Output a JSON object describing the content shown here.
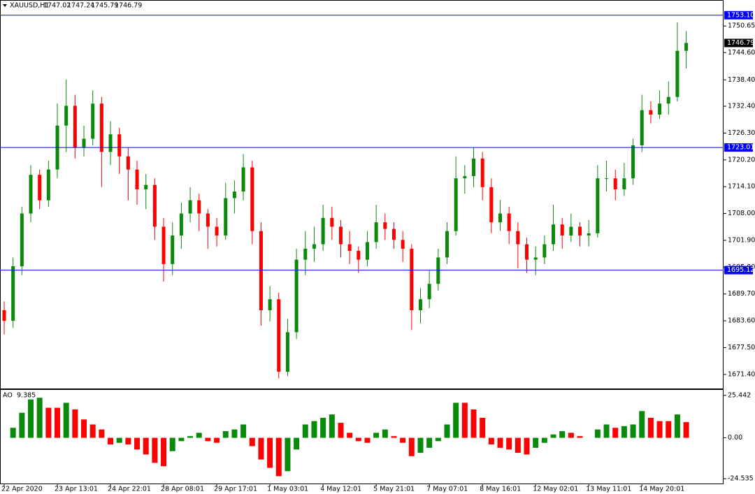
{
  "chart_data": [
    {
      "type": "candlestick",
      "title": "XAUUSD,H1",
      "header_values": [
        1747.02,
        1747.24,
        1745.79,
        1746.79
      ],
      "up_color": "#0a8a0a",
      "down_color": "#ff0000",
      "line_color": "#0000ff",
      "categories": [
        "22 Apr 2020",
        null,
        null,
        null,
        null,
        null,
        "23 Apr 13:01",
        null,
        null,
        null,
        null,
        null,
        "24 Apr 22:01",
        null,
        null,
        null,
        null,
        null,
        "28 Apr 08:01",
        null,
        null,
        null,
        null,
        null,
        "29 Apr 17:01",
        null,
        null,
        null,
        null,
        null,
        "1 May 03:01",
        null,
        null,
        null,
        null,
        null,
        "4 May 12:01",
        null,
        null,
        null,
        null,
        null,
        "5 May 21:01",
        null,
        null,
        null,
        null,
        null,
        "7 May 07:01",
        null,
        null,
        null,
        null,
        null,
        "8 May 16:01",
        null,
        null,
        null,
        null,
        null,
        "12 May 02:01",
        null,
        null,
        null,
        null,
        null,
        "13 May 11:01",
        null,
        null,
        null,
        null,
        null,
        "14 May 20:01",
        null,
        null,
        null,
        null,
        null
      ],
      "ohlc": [
        [
          1686,
          1688,
          1680.5,
          1683.6
        ],
        [
          1683.6,
          1698,
          1682,
          1696
        ],
        [
          1696,
          1709.5,
          1694,
          1708
        ],
        [
          1708,
          1719,
          1706,
          1716.8
        ],
        [
          1716.8,
          1718,
          1709,
          1711
        ],
        [
          1711,
          1720,
          1709.5,
          1718
        ],
        [
          1718,
          1733,
          1716,
          1728
        ],
        [
          1728,
          1738.5,
          1722,
          1732.5
        ],
        [
          1732.5,
          1735,
          1720.5,
          1723
        ],
        [
          1723,
          1728,
          1721,
          1725
        ],
        [
          1725,
          1736,
          1723.5,
          1733
        ],
        [
          1733,
          1734.5,
          1714,
          1722
        ],
        [
          1722,
          1729,
          1719,
          1726
        ],
        [
          1726,
          1727.5,
          1717,
          1721
        ],
        [
          1721,
          1723,
          1711,
          1718
        ],
        [
          1718,
          1720,
          1710,
          1713.5
        ],
        [
          1713.5,
          1717,
          1709,
          1714.5
        ],
        [
          1714.5,
          1716,
          1702,
          1705
        ],
        [
          1705,
          1707,
          1692.5,
          1696.5
        ],
        [
          1696.5,
          1706,
          1694,
          1703
        ],
        [
          1703,
          1710.5,
          1700,
          1708
        ],
        [
          1708,
          1714,
          1706,
          1711
        ],
        [
          1711,
          1712.5,
          1704,
          1708
        ],
        [
          1708,
          1709,
          1700,
          1705
        ],
        [
          1705,
          1707,
          1700.5,
          1703
        ],
        [
          1703,
          1715,
          1702,
          1711.5
        ],
        [
          1711.5,
          1715.5,
          1708,
          1713
        ],
        [
          1713,
          1721.5,
          1711,
          1718.5
        ],
        [
          1718.5,
          1720,
          1701,
          1704
        ],
        [
          1704,
          1706,
          1682.5,
          1686
        ],
        [
          1686,
          1691.5,
          1683.5,
          1688.5
        ],
        [
          1688.5,
          1690,
          1670.5,
          1672
        ],
        [
          1672,
          1684,
          1671,
          1681
        ],
        [
          1681,
          1700,
          1679.5,
          1697.5
        ],
        [
          1697.5,
          1704,
          1694,
          1700
        ],
        [
          1700,
          1705,
          1697,
          1701
        ],
        [
          1701,
          1710,
          1699.5,
          1707
        ],
        [
          1707,
          1709.5,
          1702,
          1705
        ],
        [
          1705,
          1706.5,
          1698,
          1701
        ],
        [
          1701,
          1704,
          1696.5,
          1699.5
        ],
        [
          1699.5,
          1700.5,
          1694.5,
          1697.5
        ],
        [
          1697.5,
          1704,
          1696,
          1701.5
        ],
        [
          1701.5,
          1710,
          1700,
          1706
        ],
        [
          1706,
          1708,
          1702,
          1704.5
        ],
        [
          1704.5,
          1706,
          1700,
          1702
        ],
        [
          1702,
          1704,
          1697,
          1700
        ],
        [
          1700,
          1701,
          1681.5,
          1686
        ],
        [
          1686,
          1691,
          1683,
          1688.5
        ],
        [
          1688.5,
          1695,
          1686.5,
          1692
        ],
        [
          1692,
          1700,
          1690.5,
          1698
        ],
        [
          1698,
          1706,
          1696.5,
          1704
        ],
        [
          1704,
          1721,
          1703,
          1716
        ],
        [
          1716,
          1719,
          1712.5,
          1716.5
        ],
        [
          1716.5,
          1723,
          1714,
          1720.5
        ],
        [
          1720.5,
          1722,
          1711,
          1714
        ],
        [
          1714,
          1716,
          1703.5,
          1706
        ],
        [
          1706,
          1711,
          1704,
          1708
        ],
        [
          1708,
          1709.5,
          1701,
          1704
        ],
        [
          1704,
          1706,
          1695.5,
          1701
        ],
        [
          1701,
          1702.5,
          1694.5,
          1697.5
        ],
        [
          1697.5,
          1700.5,
          1694,
          1698
        ],
        [
          1698,
          1703,
          1696.5,
          1701
        ],
        [
          1701,
          1710,
          1699.5,
          1705.5
        ],
        [
          1705.5,
          1707,
          1700,
          1703
        ],
        [
          1703,
          1708,
          1701.5,
          1705
        ],
        [
          1705,
          1706,
          1700.5,
          1703
        ],
        [
          1703,
          1706.5,
          1700.5,
          1703.5
        ],
        [
          1703.5,
          1719,
          1702.5,
          1716
        ],
        [
          1716,
          1720,
          1713,
          1716
        ],
        [
          1716,
          1718,
          1711,
          1713.5
        ],
        [
          1713.5,
          1719.5,
          1712,
          1716
        ],
        [
          1716,
          1725,
          1714.5,
          1723.5
        ],
        [
          1723.5,
          1735,
          1722,
          1731.5
        ],
        [
          1731.5,
          1733.5,
          1728.5,
          1730.5
        ],
        [
          1730.5,
          1736,
          1729.5,
          1733
        ],
        [
          1733,
          1738,
          1730.5,
          1734.5
        ],
        [
          1734.5,
          1751.5,
          1733.5,
          1745
        ],
        [
          1745,
          1749.5,
          1741,
          1746.79
        ]
      ],
      "ylim": [
        1668.2,
        1756.4
      ],
      "yticks": [
        {
          "value": 1750.65,
          "label": "1750.65"
        },
        {
          "value": 1744.6,
          "label": "1744.60"
        },
        {
          "value": 1738.4,
          "label": "1738.40"
        },
        {
          "value": 1732.4,
          "label": "1732.40"
        },
        {
          "value": 1726.3,
          "label": "1726.30"
        },
        {
          "value": 1720.2,
          "label": "1720.20"
        },
        {
          "value": 1714.1,
          "label": "1714.10"
        },
        {
          "value": 1708,
          "label": "1708.00"
        },
        {
          "value": 1701.9,
          "label": "1701.90"
        },
        {
          "value": 1695.8,
          "label": "1695.80"
        },
        {
          "value": 1689.7,
          "label": "1689.70"
        },
        {
          "value": 1683.6,
          "label": "1683.60"
        },
        {
          "value": 1677.5,
          "label": "1677.50"
        },
        {
          "value": 1671.4,
          "label": "1671.40"
        }
      ],
      "price_lines": [
        {
          "value": 1753.1,
          "label": "1753.10"
        },
        1723.01,
        1695.12
      ]
    },
    {
      "type": "bar",
      "title": "AO",
      "up_color": "#0a8a0a",
      "down_color": "#ff0000",
      "values": [
        0,
        6,
        15,
        23,
        24,
        18,
        18,
        21,
        17,
        11,
        8,
        5,
        -4,
        -3,
        -4,
        -7,
        -10,
        -15,
        -17,
        -8,
        -2,
        1,
        3,
        -2,
        -3,
        4,
        5,
        8,
        -5,
        -13,
        -18,
        -23,
        -20,
        -7,
        8,
        10,
        12,
        14,
        9,
        3,
        -2,
        -3,
        3,
        5,
        1,
        -3,
        -11,
        -9,
        -6,
        -2,
        8,
        21,
        21,
        17,
        12,
        -4,
        -6,
        -7,
        -9,
        -10,
        -6,
        -3,
        2,
        4,
        3,
        1,
        0,
        5,
        8,
        6,
        7,
        8,
        16,
        12,
        10,
        10,
        14,
        9.385
      ],
      "ylim": [
        -27.4,
        28.3
      ],
      "yticks": [
        25.442,
        {
          "value": 0,
          "label": "0.00"
        },
        -24.535
      ]
    }
  ]
}
